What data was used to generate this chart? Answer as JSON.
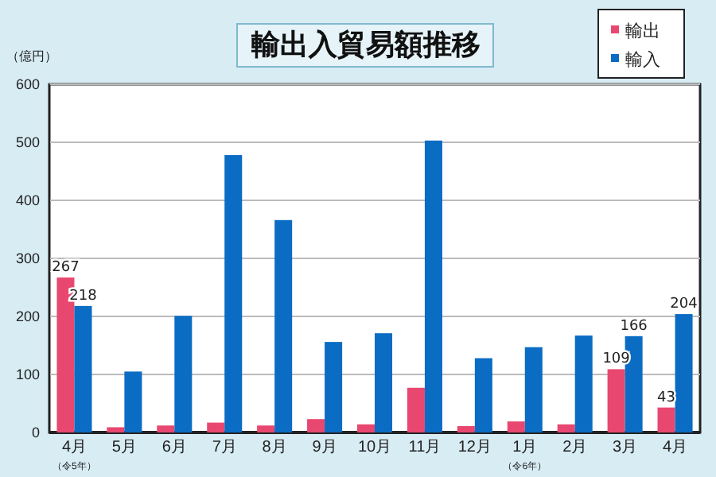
{
  "chart_data": {
    "type": "bar",
    "title": "輸出入貿易額推移",
    "ylabel": "（億円）",
    "categories": [
      "4月（令5年）",
      "5月",
      "6月",
      "7月",
      "8月",
      "9月",
      "10月",
      "11月",
      "12月",
      "1月（令6年）",
      "2月",
      "3月",
      "4月"
    ],
    "series": [
      {
        "name": "輸出",
        "color": "#e8476f",
        "values": [
          267,
          9,
          12,
          17,
          12,
          23,
          14,
          77,
          11,
          19,
          14,
          109,
          43
        ],
        "value_labels": [
          "267",
          null,
          null,
          null,
          null,
          null,
          null,
          null,
          null,
          null,
          null,
          "109",
          "43"
        ]
      },
      {
        "name": "輸入",
        "color": "#0b6cc4",
        "values": [
          218,
          105,
          201,
          478,
          366,
          156,
          171,
          503,
          128,
          147,
          167,
          166,
          204
        ],
        "value_labels": [
          "218",
          null,
          null,
          null,
          null,
          null,
          null,
          null,
          null,
          null,
          null,
          "166",
          "204"
        ]
      }
    ],
    "ylim": [
      0,
      600
    ],
    "yticks": [
      0,
      100,
      200,
      300,
      400,
      500,
      600
    ],
    "grid": "y",
    "legend": "top right"
  }
}
